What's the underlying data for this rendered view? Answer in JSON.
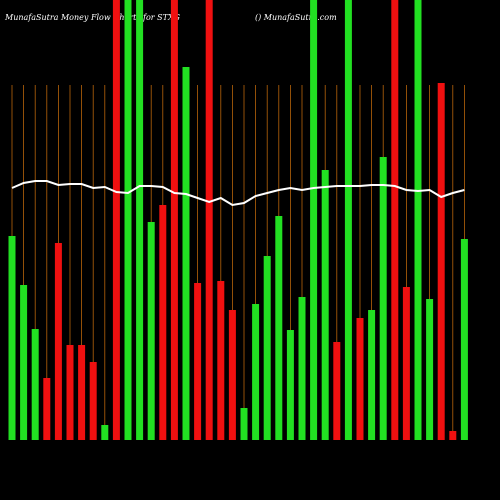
{
  "chart_data": {
    "type": "bar",
    "title": "MunafaSutra  Money Flow  Charts for STXG",
    "subtitle": "() MunafaSutra.com",
    "categories": [
      null,
      null,
      null,
      null,
      null,
      null,
      null,
      null,
      null,
      null,
      null,
      null,
      null,
      null,
      null,
      null,
      null,
      null,
      null,
      null,
      null,
      null,
      null,
      null,
      null,
      null,
      null,
      null,
      null,
      null,
      null,
      null,
      null,
      null,
      null,
      null,
      null,
      null,
      null,
      null
    ],
    "values": [
      204,
      155,
      111,
      62,
      197,
      95,
      95,
      78,
      15,
      440,
      440,
      440,
      218,
      235,
      440,
      373,
      157,
      440,
      159,
      130,
      32,
      136,
      184,
      224,
      110,
      143,
      440,
      270,
      98,
      440,
      122,
      130,
      283,
      440,
      153,
      440,
      141,
      357,
      9,
      201
    ],
    "colors": [
      "#22e022",
      "#22e022",
      "#22e022",
      "#f01010",
      "#f01010",
      "#f01010",
      "#f01010",
      "#f01010",
      "#22e022",
      "#f01010",
      "#22e022",
      "#22e022",
      "#22e022",
      "#f01010",
      "#f01010",
      "#22e022",
      "#f01010",
      "#f01010",
      "#f01010",
      "#f01010",
      "#22e022",
      "#22e022",
      "#22e022",
      "#22e022",
      "#22e022",
      "#22e022",
      "#22e022",
      "#22e022",
      "#f01010",
      "#22e022",
      "#f01010",
      "#22e022",
      "#22e022",
      "#f01010",
      "#f01010",
      "#22e022",
      "#22e022",
      "#f01010",
      "#f01010",
      "#22e022"
    ],
    "line_values": [
      252,
      257,
      259,
      259,
      255,
      256,
      256,
      252,
      253,
      248,
      247,
      254,
      254,
      253,
      247,
      246,
      242,
      238,
      242,
      235,
      237,
      244,
      247,
      250,
      252,
      250,
      252,
      253,
      254,
      254,
      254,
      255,
      255,
      254,
      250,
      249,
      250,
      243,
      247,
      250
    ],
    "line_color": "#ffffff",
    "grid_color": "#b8650a",
    "ylim": [
      0,
      440
    ]
  }
}
